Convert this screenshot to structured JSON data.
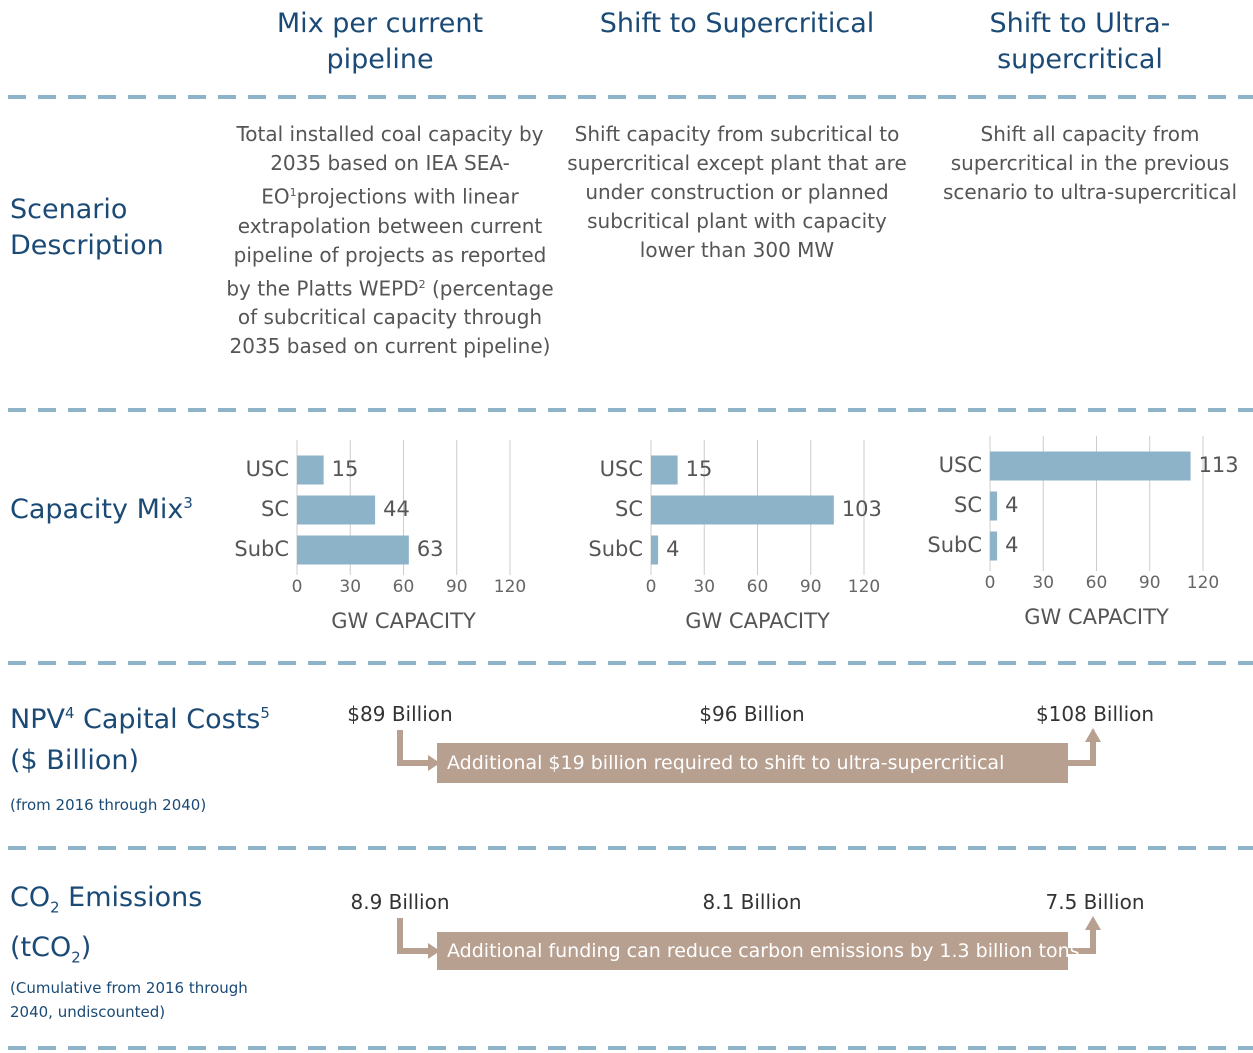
{
  "headers": [
    "Mix per current pipeline",
    "Shift to Supercritical",
    "Shift to Ultra-supercritical"
  ],
  "scenario": {
    "label": "Scenario Description",
    "descriptions": [
      [
        "Total installed coal capacity by 2035 based on IEA SEA-EO",
        "1",
        "projections with linear extrapolation between current pipeline of projects as reported by the Platts WEPD",
        "2",
        "(percentage of subcritical capacity through 2035 based on current pipeline)"
      ],
      [
        "Shift capacity from subcritical to supercritical except plant that are under construction or planned subcritical plant with capacity lower than 300 MW"
      ],
      [
        "Shift all capacity from supercritical in the previous scenario to ultra-supercritical"
      ]
    ]
  },
  "capacity": {
    "label": "Capacity Mix",
    "note": "3"
  },
  "chart_data": [
    {
      "type": "hbar",
      "categories": [
        "USC",
        "SC",
        "SubC"
      ],
      "values": [
        15,
        44,
        63
      ],
      "color": "#8db3c9",
      "xlim": [
        0,
        120
      ],
      "xticks": [
        0,
        30,
        60,
        90,
        120
      ],
      "xlabel": "GW CAPACITY",
      "grid": true
    },
    {
      "type": "hbar",
      "categories": [
        "USC",
        "SC",
        "SubC"
      ],
      "values": [
        15,
        103,
        4
      ],
      "color": "#8db3c9",
      "xlim": [
        0,
        120
      ],
      "xticks": [
        0,
        30,
        60,
        90,
        120
      ],
      "xlabel": "GW CAPACITY",
      "grid": true
    },
    {
      "type": "hbar",
      "categories": [
        "USC",
        "SC",
        "SubC"
      ],
      "values": [
        113,
        4,
        4
      ],
      "color": "#8db3c9",
      "xlim": [
        0,
        120
      ],
      "xticks": [
        0,
        30,
        60,
        90,
        120
      ],
      "xlabel": "GW CAPACITY",
      "grid": true
    }
  ],
  "npv": {
    "label": [
      "NPV",
      "4",
      "Capital Costs",
      "5"
    ],
    "unit": "($ Billion)",
    "period": "(from 2016 through 2040)",
    "values": [
      "$89 Billion",
      "$96 Billion",
      "$108 Billion"
    ],
    "annotation": "Additional $19 billion required to shift to ultra-supercritical"
  },
  "co2": {
    "label": [
      "CO",
      "2",
      " Emissions"
    ],
    "unit": [
      "(tCO",
      "2",
      ")"
    ],
    "period": "(Cumulative from 2016 through 2040, undiscounted)",
    "values": [
      "8.9 Billion",
      "8.1 Billion",
      "7.5 Billion"
    ],
    "annotation": "Additional funding can reduce carbon emissions by 1.3 billion tons"
  }
}
